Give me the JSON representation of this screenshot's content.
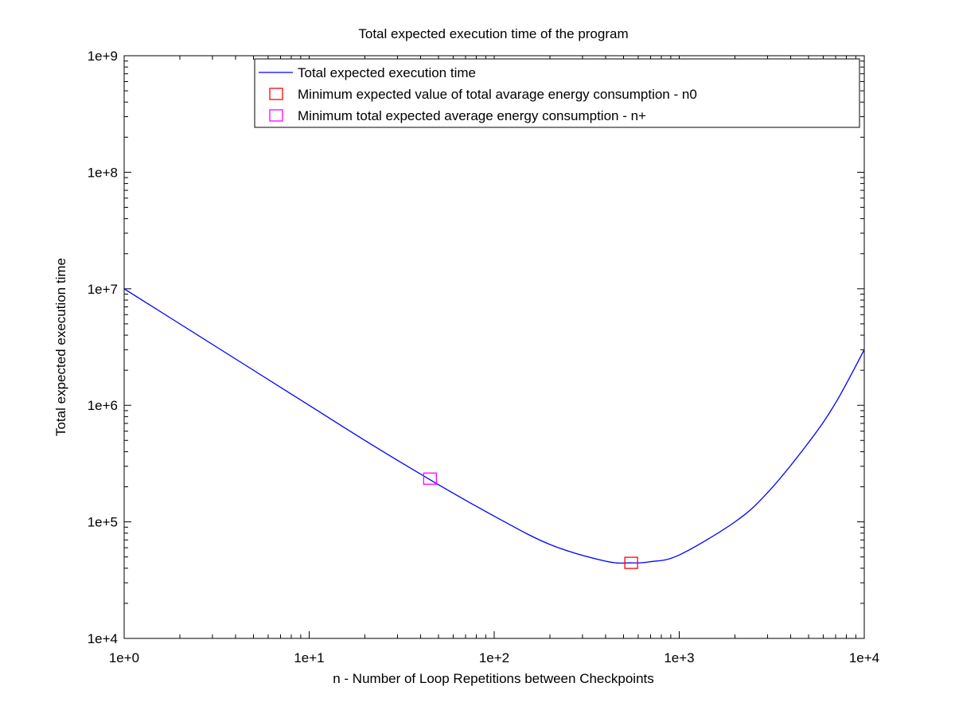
{
  "chart_data": {
    "type": "line",
    "title": "Total expected execution time of the program",
    "xlabel": "n - Number of Loop Repetitions between Checkpoints",
    "ylabel": "Total expected execution time",
    "xscale": "log",
    "yscale": "log",
    "xlim": [
      1,
      10000
    ],
    "ylim": [
      10000,
      1000000000
    ],
    "grid": false,
    "legend_position": "top",
    "x_tick_labels": [
      "1e+0",
      "1e+1",
      "1e+2",
      "1e+3",
      "1e+4"
    ],
    "y_tick_labels": [
      "1e+4",
      "1e+5",
      "1e+6",
      "1e+7",
      "1e+8",
      "1e+9"
    ],
    "series": [
      {
        "name": "Total expected execution time",
        "kind": "line",
        "color": "#0000ff",
        "x": [
          1,
          2,
          5,
          10,
          20,
          45,
          100,
          200,
          400,
          550,
          700,
          1000,
          2000,
          3000,
          5000,
          7000,
          10000
        ],
        "y": [
          10000000,
          5000000,
          2000000,
          1000000,
          500000,
          230000,
          112000,
          64000,
          46000,
          44500,
          45500,
          52000,
          100000,
          178000,
          480000,
          1050000,
          3000000
        ]
      },
      {
        "name": "Minimum expected value of total avarage energy consumption - n0",
        "kind": "marker",
        "marker": "square",
        "color": "#ff0000",
        "x": [
          550
        ],
        "y": [
          44500
        ]
      },
      {
        "name": "Minimum total expected average energy consumption - n+",
        "kind": "marker",
        "marker": "square",
        "color": "#ff00ff",
        "x": [
          45
        ],
        "y": [
          235000
        ]
      }
    ]
  }
}
